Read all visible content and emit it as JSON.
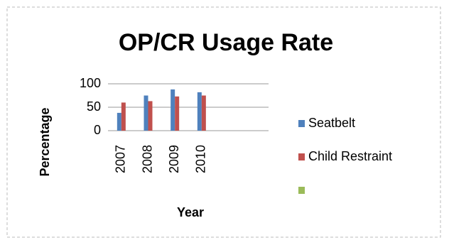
{
  "chart_data": {
    "type": "bar",
    "title": "OP/CR Usage Rate",
    "x_label": "Year",
    "y_label": "Percentage",
    "categories": [
      "2007",
      "2008",
      "2009",
      "2010",
      null,
      null
    ],
    "series": [
      {
        "name": "Seatbelt",
        "color": "#4f81bd",
        "values": [
          38,
          75,
          88,
          82,
          null,
          null
        ]
      },
      {
        "name": "Child Restraint",
        "color": "#c0504d",
        "values": [
          60,
          63,
          73,
          75,
          null,
          null
        ]
      },
      {
        "color": "#9bbb59",
        "values": [
          null,
          null,
          null,
          null,
          null,
          null
        ]
      }
    ],
    "ylim": [
      0,
      100
    ],
    "yticks": [
      0,
      50,
      100
    ],
    "grid": true,
    "legend": "right"
  }
}
